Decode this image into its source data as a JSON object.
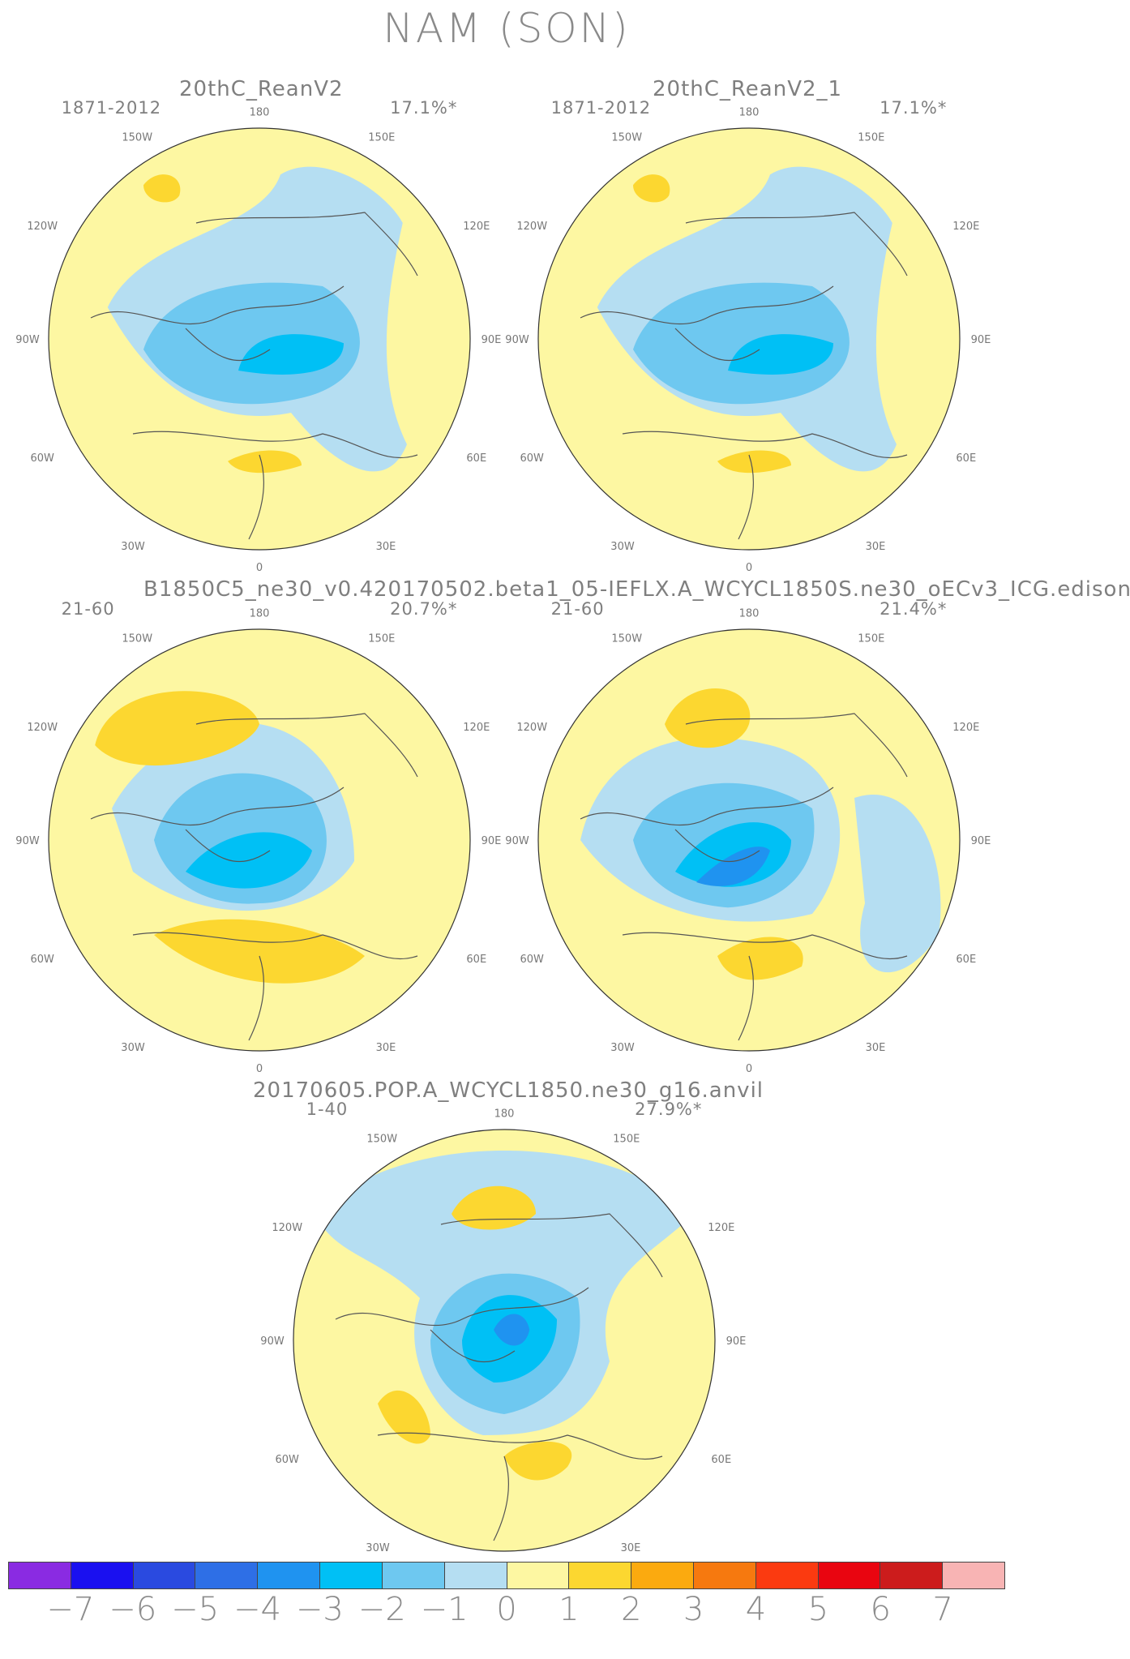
{
  "title": "NAM (SON)",
  "section_titles": {
    "obs": [
      "20thC_ReanV2",
      "20thC_ReanV2_1"
    ],
    "model1": "B1850C5_ne30_v0.420170502.beta1_05-IEFLX.A_WCYCL1850S.ne30_oECv3_ICG.edison",
    "model2": "20170605.POP.A_WCYCL1850.ne30_g16.anvil"
  },
  "panels": [
    {
      "period": "1871-2012",
      "variance": "17.1%*"
    },
    {
      "period": "1871-2012",
      "variance": "17.1%*"
    },
    {
      "period": "21-60",
      "variance": "20.7%*"
    },
    {
      "period": "21-60",
      "variance": "21.4%*"
    },
    {
      "period": "1-40",
      "variance": "27.9%*"
    }
  ],
  "longitude_labels": {
    "top": "180",
    "bottom": "0",
    "left": "90W",
    "right": "90E",
    "upper_left_outer": "120W",
    "upper_left_inner": "150W",
    "upper_right_inner": "150E",
    "upper_right_outer": "120E",
    "lower_left_outer": "60W",
    "lower_left_inner": "30W",
    "lower_right_inner": "30E",
    "lower_right_outer": "60E"
  },
  "colorbar": {
    "colors": [
      "#8a2be2",
      "#1a10f0",
      "#2a4ae0",
      "#2e6fe6",
      "#1f93f0",
      "#00c0f5",
      "#6ec8f0",
      "#b5def2",
      "#fdf7a2",
      "#fcd730",
      "#fbaa0f",
      "#f6790f",
      "#fb3a10",
      "#e90510",
      "#cc1c1c",
      "#f8b4b4"
    ],
    "labels": [
      "−7",
      "−6",
      "−5",
      "−4",
      "−3",
      "−2",
      "−1",
      "0",
      "1",
      "2",
      "3",
      "4",
      "5",
      "6",
      "7"
    ]
  },
  "palette": {
    "pos_weak": "#fdf7a2",
    "pos_1": "#fcd730",
    "pos_2": "#fbaa0f",
    "neg_1": "#b5def2",
    "neg_2": "#6ec8f0",
    "neg_3": "#00c0f5",
    "neg_4": "#1f93f0",
    "coast": "#555555"
  }
}
